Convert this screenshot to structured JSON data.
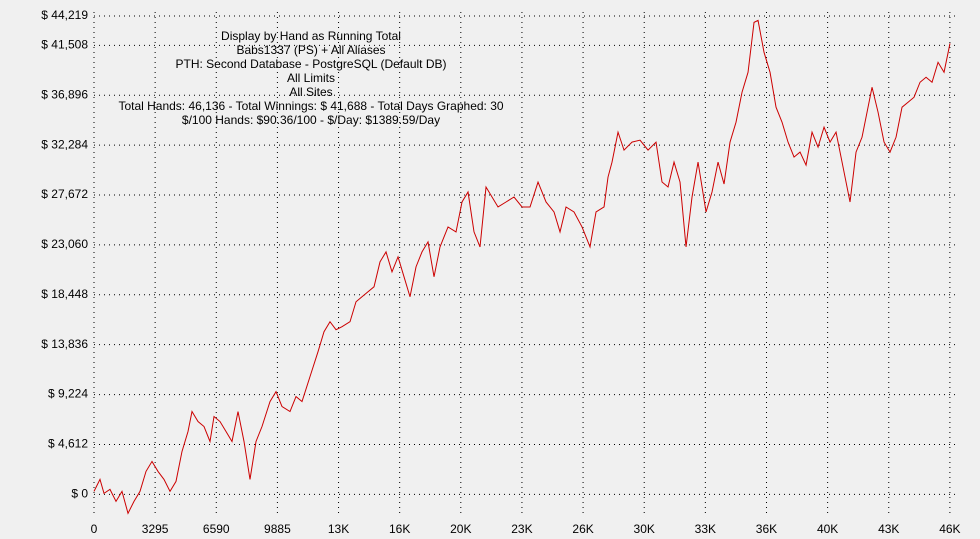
{
  "chart_data": {
    "type": "line",
    "annotations": [
      "Display by Hand as Running Total",
      "Babs1337 (PS) + All Aliases",
      "PTH: Second Database - PostgreSQL (Default DB)",
      "All Limits",
      "All Sites",
      "Total Hands: 46,136 - Total Winnings: $ 41,688 - Total Days Graphed: 30",
      "$/100 Hands: $90.36/100 - $/Day: $1389.59/Day"
    ],
    "xlim": [
      0,
      46136
    ],
    "ylim": [
      -2000,
      44219
    ],
    "xticks": [
      0,
      3295,
      6590,
      9885,
      {
        "value": 13180,
        "label": "13K"
      },
      {
        "value": 16475,
        "label": "16K"
      },
      {
        "value": 19770,
        "label": "20K"
      },
      {
        "value": 23065,
        "label": "23K"
      },
      {
        "value": 26360,
        "label": "26K"
      },
      {
        "value": 29655,
        "label": "30K"
      },
      {
        "value": 32950,
        "label": "33K"
      },
      {
        "value": 36245,
        "label": "36K"
      },
      {
        "value": 39540,
        "label": "40K"
      },
      {
        "value": 42835,
        "label": "43K"
      },
      {
        "value": 46130,
        "label": "46K"
      }
    ],
    "yticks": [
      {
        "value": 0,
        "label": "$ 0"
      },
      {
        "value": 4612,
        "label": "$ 4,612"
      },
      {
        "value": 9224,
        "label": "$ 9,224"
      },
      {
        "value": 13836,
        "label": "$ 13,836"
      },
      {
        "value": 18448,
        "label": "$ 18,448"
      },
      {
        "value": 23060,
        "label": "$ 23,060"
      },
      {
        "value": 27672,
        "label": "$ 27,672"
      },
      {
        "value": 32284,
        "label": "$ 32,284"
      },
      {
        "value": 36896,
        "label": "$ 36,896"
      },
      {
        "value": 41508,
        "label": "$ 41,508"
      },
      {
        "value": 44219,
        "label": "$ 44,219"
      }
    ],
    "grid": true,
    "series": [
      {
        "color": "#cc0000",
        "x": [
          0,
          323,
          539,
          862,
          1186,
          1509,
          1833,
          2156,
          2479,
          2803,
          3126,
          3450,
          3773,
          4096,
          4420,
          4743,
          5067,
          5282,
          5606,
          5929,
          6252,
          6468,
          6791,
          7115,
          7438,
          7762,
          8085,
          8408,
          8732,
          9055,
          9486,
          9810,
          10133,
          10564,
          10888,
          11211,
          11642,
          12074,
          12397,
          12720,
          13044,
          13367,
          13798,
          14122,
          14445,
          14769,
          15092,
          15415,
          15739,
          16062,
          16386,
          16709,
          17032,
          17356,
          17679,
          18003,
          18326,
          18649,
          19081,
          19512,
          19835,
          20159,
          20482,
          20805,
          21129,
          21452,
          21776,
          22207,
          22638,
          23069,
          23500,
          23932,
          24363,
          24794,
          25117,
          25441,
          25872,
          26303,
          26734,
          27058,
          27489,
          27705,
          27920,
          28244,
          28567,
          28998,
          29429,
          29861,
          30292,
          30615,
          30939,
          31262,
          31585,
          31909,
          32232,
          32556,
          32987,
          33310,
          33634,
          33957,
          34280,
          34604,
          34927,
          35251,
          35574,
          35790,
          36113,
          36436,
          36760,
          37083,
          37407,
          37730,
          38053,
          38377,
          38700,
          39024,
          39347,
          39670,
          39994,
          40317,
          40533,
          40748,
          41072,
          41395,
          41611,
          41934,
          42258,
          42581,
          42904,
          43228,
          43551,
          43875,
          44198,
          44521,
          44845,
          45168,
          45492,
          45815,
          46136
        ],
        "values": [
          277,
          1384,
          92,
          461,
          -646,
          277,
          -1753,
          -646,
          277,
          2122,
          3044,
          2122,
          1384,
          277,
          1199,
          3966,
          5811,
          7656,
          6734,
          6272,
          4889,
          7195,
          6734,
          5811,
          4889,
          7656,
          4889,
          1384,
          4889,
          6272,
          8578,
          9500,
          8117,
          7656,
          9040,
          8578,
          10884,
          13190,
          15035,
          15958,
          15220,
          15496,
          15958,
          17802,
          18264,
          18725,
          19186,
          21492,
          22414,
          20570,
          21953,
          20108,
          18264,
          21031,
          22414,
          23337,
          20108,
          22876,
          24720,
          24259,
          27026,
          27949,
          24259,
          22876,
          28410,
          27488,
          26565,
          27026,
          27488,
          26565,
          26565,
          28871,
          27026,
          26104,
          24259,
          26565,
          26104,
          24720,
          22876,
          26104,
          26565,
          29332,
          30716,
          33483,
          31823,
          32561,
          32745,
          31823,
          32561,
          28871,
          28410,
          30716,
          28871,
          22876,
          27488,
          30716,
          26104,
          27949,
          30716,
          28687,
          32561,
          34406,
          37173,
          39018,
          43630,
          43814,
          40862,
          39018,
          35789,
          34406,
          32561,
          31177,
          31638,
          30439,
          33483,
          32100,
          33944,
          32561,
          33483,
          30716,
          28871,
          27026,
          31638,
          33022,
          34867,
          37634,
          35328,
          32561,
          31638,
          33022,
          35789,
          36250,
          36712,
          38095,
          38557,
          38095,
          39940,
          39018,
          41688
        ]
      }
    ]
  }
}
